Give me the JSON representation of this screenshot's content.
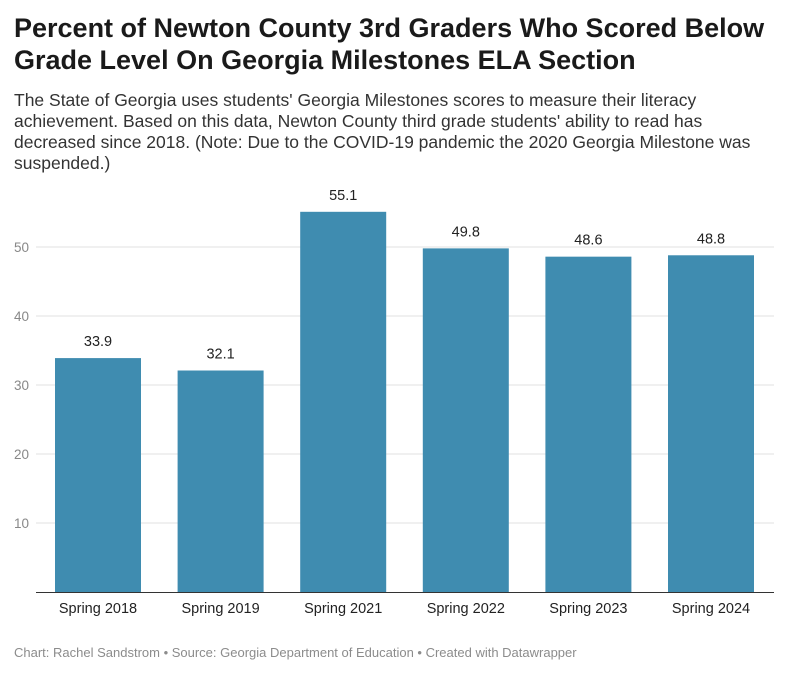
{
  "title": "Percent of Newton County 3rd Graders Who Scored Below Grade Level On Georgia Milestones ELA Section",
  "subtitle": "The State of Georgia uses students' Georgia Milestones scores to measure their literacy achievement. Based on this data, Newton County third grade students' ability to read has decreased since 2018. (Note: Due to the COVID-19 pandemic the 2020 Georgia Milestone was suspended.)",
  "footer": "Chart: Rachel Sandstrom • Source: Georgia Department of Education • Created with Datawrapper",
  "colors": {
    "bar": "#3f8cb0",
    "grid": "#e2e2e2"
  },
  "chart_data": {
    "type": "bar",
    "title": "Percent of Newton County 3rd Graders Who Scored Below Grade Level On Georgia Milestones ELA Section",
    "xlabel": "",
    "ylabel": "",
    "categories": [
      "Spring 2018",
      "Spring 2019",
      "Spring 2021",
      "Spring 2022",
      "Spring 2023",
      "Spring 2024"
    ],
    "values": [
      33.9,
      32.1,
      55.1,
      49.8,
      48.6,
      48.8
    ],
    "value_labels": [
      "33.9",
      "32.1",
      "55.1",
      "49.8",
      "48.6",
      "48.8"
    ],
    "yticks": [
      10,
      20,
      30,
      40,
      50
    ],
    "ylim": [
      0,
      57
    ],
    "grid": true
  }
}
